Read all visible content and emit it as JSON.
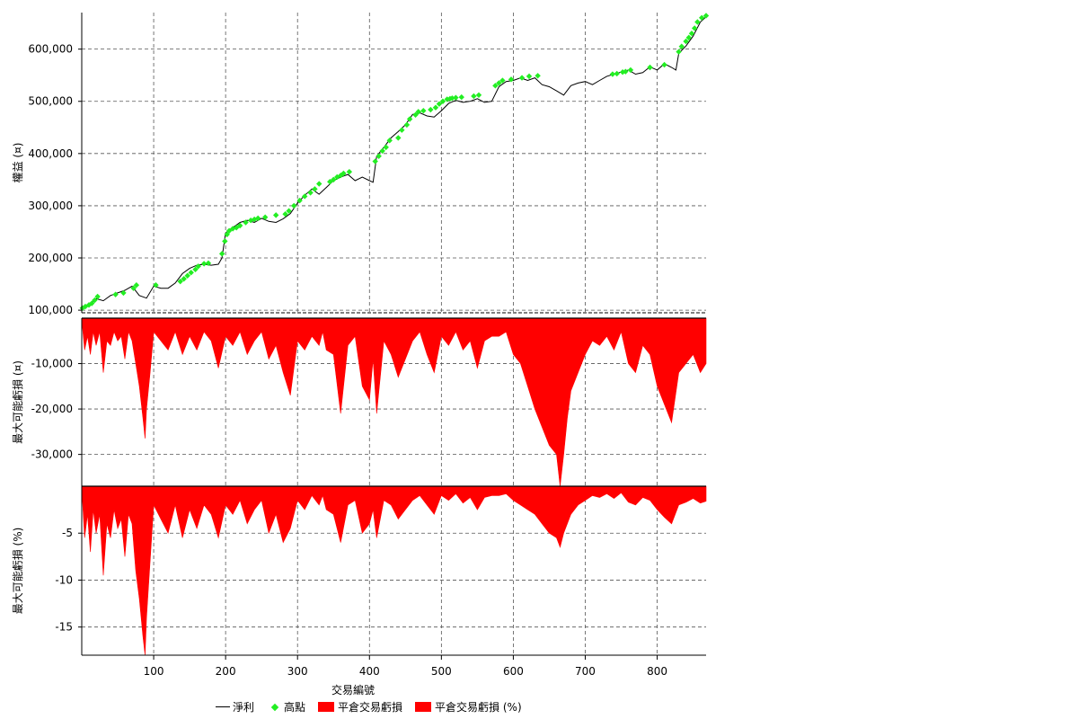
{
  "chart_data": [
    {
      "type": "line",
      "ylabel": "權益 (¤)",
      "ylim": [
        95000,
        670000
      ],
      "yticks": [
        100000,
        200000,
        300000,
        400000,
        500000,
        600000
      ],
      "ytick_labels": [
        "100,000",
        "200,000",
        "300,000",
        "400,000",
        "500,000",
        "600,000"
      ],
      "xlim": [
        0,
        868
      ],
      "series": [
        {
          "name": "淨利",
          "x": [
            1,
            10,
            20,
            30,
            40,
            50,
            60,
            70,
            80,
            90,
            100,
            110,
            120,
            130,
            140,
            150,
            160,
            170,
            180,
            190,
            195,
            200,
            210,
            220,
            230,
            240,
            250,
            260,
            270,
            280,
            290,
            300,
            310,
            320,
            330,
            340,
            350,
            360,
            370,
            380,
            390,
            400,
            405,
            410,
            420,
            430,
            440,
            450,
            460,
            470,
            480,
            490,
            500,
            510,
            520,
            530,
            540,
            550,
            560,
            570,
            580,
            590,
            600,
            610,
            620,
            630,
            640,
            650,
            660,
            670,
            680,
            690,
            700,
            710,
            720,
            730,
            740,
            750,
            760,
            770,
            780,
            790,
            800,
            810,
            820,
            826,
            830,
            840,
            850,
            860,
            868
          ],
          "y": [
            103000,
            108000,
            122000,
            118000,
            128000,
            133000,
            138000,
            146000,
            128000,
            123000,
            146000,
            142000,
            142000,
            152000,
            170000,
            180000,
            186000,
            188000,
            186000,
            188000,
            200000,
            248000,
            258000,
            268000,
            272000,
            268000,
            276000,
            270000,
            268000,
            275000,
            285000,
            305000,
            320000,
            332000,
            322000,
            335000,
            348000,
            355000,
            360000,
            348000,
            355000,
            348000,
            345000,
            395000,
            412000,
            430000,
            442000,
            455000,
            475000,
            478000,
            472000,
            470000,
            482000,
            496000,
            502000,
            498000,
            500000,
            505000,
            498000,
            500000,
            528000,
            538000,
            540000,
            545000,
            540000,
            545000,
            532000,
            528000,
            520000,
            512000,
            530000,
            535000,
            538000,
            532000,
            540000,
            548000,
            552000,
            556000,
            560000,
            552000,
            555000,
            566000,
            560000,
            572000,
            565000,
            560000,
            592000,
            606000,
            625000,
            652000,
            662000
          ]
        },
        {
          "name": "高點",
          "x": [
            1,
            5,
            10,
            14,
            18,
            22,
            47,
            58,
            72,
            76,
            103,
            137,
            142,
            147,
            152,
            158,
            162,
            170,
            176,
            195,
            199,
            202,
            205,
            210,
            215,
            220,
            228,
            235,
            240,
            245,
            255,
            270,
            283,
            288,
            295,
            303,
            310,
            318,
            324,
            330,
            345,
            350,
            355,
            360,
            364,
            372,
            408,
            413,
            418,
            423,
            428,
            440,
            445,
            452,
            456,
            464,
            468,
            475,
            485,
            492,
            497,
            502,
            508,
            512,
            515,
            520,
            528,
            545,
            552,
            575,
            580,
            585,
            597,
            612,
            622,
            634,
            738,
            744,
            752,
            756,
            763,
            790,
            810,
            830,
            834,
            840,
            844,
            848,
            852,
            856,
            862,
            868
          ],
          "y": [
            104000,
            107000,
            110000,
            113000,
            119000,
            126000,
            130000,
            133000,
            142000,
            148000,
            148000,
            155000,
            160000,
            166000,
            172000,
            178000,
            184000,
            189000,
            190000,
            208000,
            232000,
            245000,
            252000,
            256000,
            258000,
            262000,
            268000,
            272000,
            274000,
            276000,
            278000,
            282000,
            284000,
            290000,
            300000,
            310000,
            318000,
            325000,
            332000,
            342000,
            346000,
            350000,
            355000,
            358000,
            362000,
            365000,
            385000,
            395000,
            405000,
            412000,
            425000,
            430000,
            445000,
            455000,
            466000,
            474000,
            480000,
            482000,
            484000,
            488000,
            495000,
            500000,
            504000,
            505000,
            506000,
            507000,
            508000,
            510000,
            512000,
            530000,
            535000,
            540000,
            542000,
            545000,
            548000,
            549000,
            552000,
            553000,
            556000,
            557000,
            560000,
            565000,
            570000,
            595000,
            605000,
            615000,
            622000,
            630000,
            640000,
            652000,
            660000,
            664000
          ]
        }
      ]
    },
    {
      "type": "area",
      "ylabel": "最大可能虧損 (¤)",
      "ylim": [
        -37000,
        0
      ],
      "yticks": [
        -10000,
        -20000,
        -30000
      ],
      "ytick_labels": [
        "-10,000",
        "-20,000",
        "-30,000"
      ],
      "xlim": [
        0,
        868
      ],
      "series": [
        {
          "name": "平倉交易虧損",
          "x": [
            1,
            4,
            8,
            12,
            16,
            20,
            25,
            30,
            35,
            40,
            45,
            50,
            55,
            60,
            65,
            70,
            75,
            80,
            85,
            88,
            90,
            95,
            100,
            110,
            120,
            130,
            140,
            150,
            160,
            170,
            180,
            190,
            200,
            210,
            220,
            230,
            240,
            250,
            260,
            270,
            280,
            290,
            300,
            310,
            320,
            330,
            335,
            340,
            350,
            360,
            370,
            380,
            390,
            400,
            405,
            410,
            420,
            430,
            440,
            450,
            460,
            470,
            480,
            490,
            500,
            510,
            520,
            530,
            540,
            550,
            560,
            570,
            580,
            590,
            600,
            610,
            620,
            630,
            640,
            650,
            660,
            665,
            670,
            675,
            680,
            690,
            700,
            710,
            720,
            730,
            740,
            750,
            760,
            770,
            780,
            790,
            800,
            810,
            820,
            830,
            840,
            850,
            860,
            868
          ],
          "y": [
            -2000,
            -7000,
            -4000,
            -8000,
            -3000,
            -6000,
            -3000,
            -12000,
            -5000,
            -6000,
            -3000,
            -5000,
            -4000,
            -9000,
            -3000,
            -5000,
            -10000,
            -15000,
            -22000,
            -26500,
            -20000,
            -12000,
            -3000,
            -5000,
            -7000,
            -3000,
            -8000,
            -4000,
            -7000,
            -3000,
            -5000,
            -11000,
            -4000,
            -6000,
            -3000,
            -8000,
            -5000,
            -3000,
            -9000,
            -6000,
            -12000,
            -17000,
            -5000,
            -7000,
            -4000,
            -6000,
            -3000,
            -7000,
            -8000,
            -21000,
            -6000,
            -4000,
            -15000,
            -18000,
            -9000,
            -21000,
            -5000,
            -8000,
            -13000,
            -9000,
            -5000,
            -3000,
            -8000,
            -12000,
            -4000,
            -6000,
            -3000,
            -7000,
            -5000,
            -11000,
            -5000,
            -4000,
            -4000,
            -3000,
            -8000,
            -10000,
            -15000,
            -20000,
            -24000,
            -28000,
            -30000,
            -37000,
            -30000,
            -22000,
            -16000,
            -12000,
            -8000,
            -5000,
            -6000,
            -4000,
            -7000,
            -3000,
            -10000,
            -12000,
            -6000,
            -8000,
            -15000,
            -19000,
            -23000,
            -12000,
            -10000,
            -8000,
            -12000,
            -10000
          ]
        }
      ]
    },
    {
      "type": "area",
      "ylabel": "最大可能虧損 (%)",
      "ylim": [
        -18,
        0
      ],
      "yticks": [
        -5,
        -10,
        -15
      ],
      "ytick_labels": [
        "-5",
        "-10",
        "-15"
      ],
      "xlim": [
        0,
        868
      ],
      "xlabel": "交易編號",
      "xticks": [
        100,
        200,
        300,
        400,
        500,
        600,
        700,
        800
      ],
      "series": [
        {
          "name": "平倉交易虧損 (%)",
          "x": [
            1,
            4,
            8,
            12,
            16,
            20,
            25,
            30,
            35,
            40,
            45,
            50,
            55,
            60,
            65,
            70,
            75,
            80,
            85,
            88,
            90,
            95,
            100,
            110,
            120,
            130,
            140,
            150,
            160,
            170,
            180,
            190,
            200,
            210,
            220,
            230,
            240,
            250,
            260,
            270,
            280,
            290,
            300,
            310,
            320,
            330,
            335,
            340,
            350,
            360,
            370,
            380,
            390,
            400,
            405,
            410,
            420,
            430,
            440,
            450,
            460,
            470,
            480,
            490,
            500,
            510,
            520,
            530,
            540,
            550,
            560,
            570,
            580,
            590,
            600,
            610,
            620,
            630,
            640,
            650,
            660,
            665,
            670,
            675,
            680,
            690,
            700,
            710,
            720,
            730,
            740,
            750,
            760,
            770,
            780,
            790,
            800,
            810,
            820,
            830,
            840,
            850,
            860,
            868
          ],
          "y": [
            -1.5,
            -5.5,
            -3,
            -7,
            -2.5,
            -5,
            -3,
            -9.5,
            -4,
            -5.5,
            -2.5,
            -4.5,
            -3.5,
            -7.5,
            -3,
            -4,
            -9,
            -12,
            -16,
            -18,
            -14,
            -8,
            -2,
            -3.5,
            -5,
            -2,
            -5.5,
            -2.5,
            -4.5,
            -2,
            -3,
            -5.5,
            -2,
            -3,
            -1.5,
            -4,
            -2.5,
            -1.5,
            -5,
            -3,
            -6,
            -4.5,
            -1.5,
            -2.5,
            -1,
            -2,
            -1,
            -2.5,
            -3,
            -6,
            -2,
            -1.5,
            -5,
            -4,
            -2.5,
            -5.5,
            -1.5,
            -2,
            -3.5,
            -2.5,
            -1.5,
            -1,
            -2,
            -3,
            -1,
            -1.5,
            -0.8,
            -1.8,
            -1.2,
            -2.5,
            -1.2,
            -1,
            -1,
            -0.8,
            -1.5,
            -2,
            -2.5,
            -3,
            -4,
            -5,
            -5.5,
            -6.5,
            -5,
            -4,
            -3,
            -2,
            -1.5,
            -1,
            -1.2,
            -0.8,
            -1.3,
            -0.7,
            -1.7,
            -2,
            -1.2,
            -1.5,
            -2.5,
            -3.3,
            -4,
            -2,
            -1.7,
            -1.3,
            -1.8,
            -1.6
          ]
        }
      ]
    }
  ],
  "legend": {
    "items": [
      {
        "label": "淨利"
      },
      {
        "label": "高點"
      },
      {
        "label": "平倉交易虧損"
      },
      {
        "label": "平倉交易虧損 (%)"
      }
    ]
  },
  "colors": {
    "net_profit_line": "#000000",
    "peak_marker": "#22ee22",
    "drawdown_fill": "#ff0000",
    "grid": "#555555"
  }
}
